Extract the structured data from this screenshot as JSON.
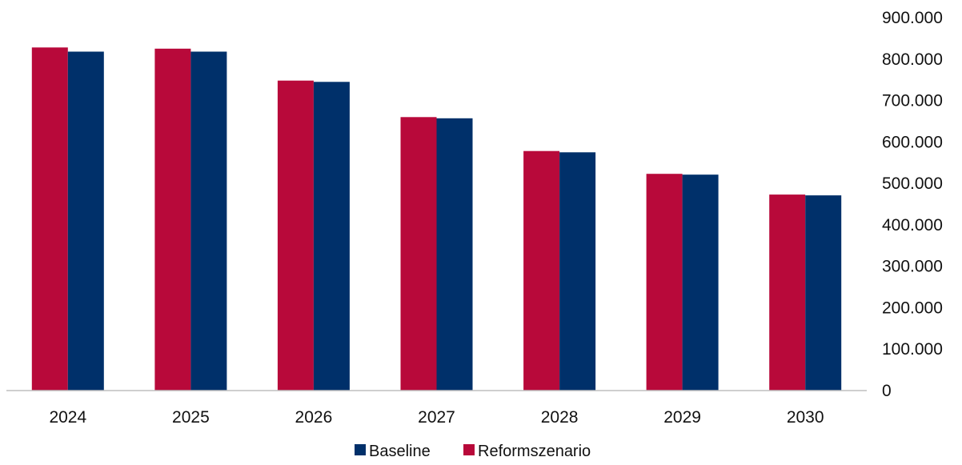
{
  "chart_data": {
    "type": "bar",
    "categories": [
      "2024",
      "2025",
      "2026",
      "2027",
      "2028",
      "2029",
      "2030"
    ],
    "series": [
      {
        "name": "Reformszenario",
        "color": "#B8093A",
        "values": [
          828000,
          825000,
          748000,
          660000,
          578000,
          523000,
          473000
        ]
      },
      {
        "name": "Baseline",
        "color": "#00306A",
        "values": [
          818000,
          818000,
          745000,
          657000,
          575000,
          521000,
          471000
        ]
      }
    ],
    "y_ticks": [
      "0",
      "100.000",
      "200.000",
      "300.000",
      "400.000",
      "500.000",
      "600.000",
      "700.000",
      "800.000",
      "900.000"
    ],
    "ylim": [
      0,
      900000
    ],
    "y_axis_position": "right",
    "grid": false,
    "legend": {
      "placement": "bottom",
      "entries": [
        "Baseline",
        "Reformszenario"
      ]
    },
    "title": "",
    "xlabel": "",
    "ylabel": ""
  }
}
